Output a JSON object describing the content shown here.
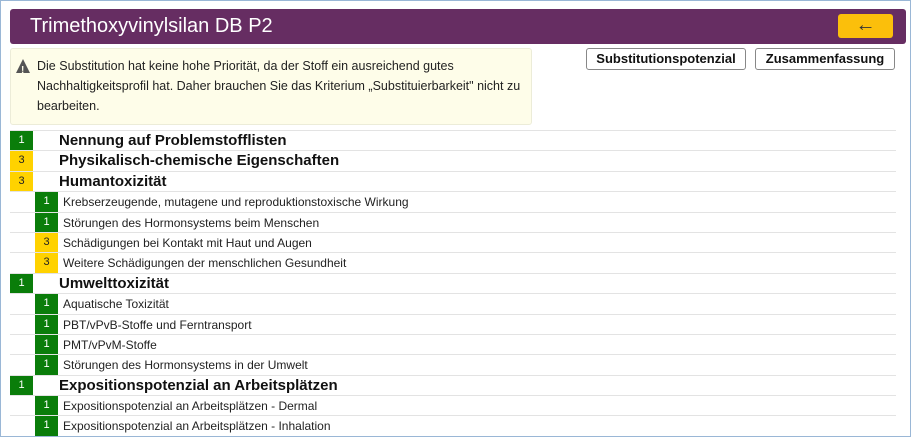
{
  "header": {
    "title": "Trimethoxyvinylsilan DB P2",
    "back_icon": "arrow-left-icon",
    "back_label": "←"
  },
  "notice": {
    "icon": "warning-icon",
    "text": "Die Substitution hat keine hohe Priorität, da der Stoff ein ausreichend gutes Nachhaltigkeitsprofil hat. Daher brauchen Sie das Kriterium „Substituierbarkeit\" nicht zu bearbeiten."
  },
  "buttons": {
    "substitution": "Substitutionspotenzial",
    "summary": "Zusammenfassung"
  },
  "colors": {
    "header": "#662d62",
    "back": "#fbbf0b",
    "green": "#0a7d0a",
    "yellow": "#ffd200"
  },
  "items": [
    {
      "level": "top",
      "score": "1",
      "color": "green",
      "label": "Nennung auf Problemstofflisten"
    },
    {
      "level": "top",
      "score": "3",
      "color": "yellow",
      "label": "Physikalisch-chemische Eigenschaften"
    },
    {
      "level": "top",
      "score": "3",
      "color": "yellow",
      "label": "Humantoxizität"
    },
    {
      "level": "sub",
      "score": "1",
      "color": "green",
      "label": "Krebserzeugende, mutagene und reproduktionstoxische Wirkung"
    },
    {
      "level": "sub",
      "score": "1",
      "color": "green",
      "label": "Störungen des Hormonsystems beim Menschen"
    },
    {
      "level": "sub",
      "score": "3",
      "color": "yellow",
      "label": "Schädigungen bei Kontakt mit Haut und Augen"
    },
    {
      "level": "sub",
      "score": "3",
      "color": "yellow",
      "label": "Weitere Schädigungen der menschlichen Gesundheit"
    },
    {
      "level": "top",
      "score": "1",
      "color": "green",
      "label": "Umwelttoxizität"
    },
    {
      "level": "sub",
      "score": "1",
      "color": "green",
      "label": "Aquatische Toxizität"
    },
    {
      "level": "sub",
      "score": "1",
      "color": "green",
      "label": "PBT/vPvB-Stoffe und Ferntransport"
    },
    {
      "level": "sub",
      "score": "1",
      "color": "green",
      "label": "PMT/vPvM-Stoffe"
    },
    {
      "level": "sub",
      "score": "1",
      "color": "green",
      "label": "Störungen des Hormonsystems in der Umwelt"
    },
    {
      "level": "top",
      "score": "1",
      "color": "green",
      "label": "Expositionspotenzial an Arbeitsplätzen"
    },
    {
      "level": "sub",
      "score": "1",
      "color": "green",
      "label": "Expositionspotenzial an Arbeitsplätzen - Dermal"
    },
    {
      "level": "sub",
      "score": "1",
      "color": "green",
      "label": "Expositionspotenzial an Arbeitsplätzen - Inhalation"
    }
  ]
}
